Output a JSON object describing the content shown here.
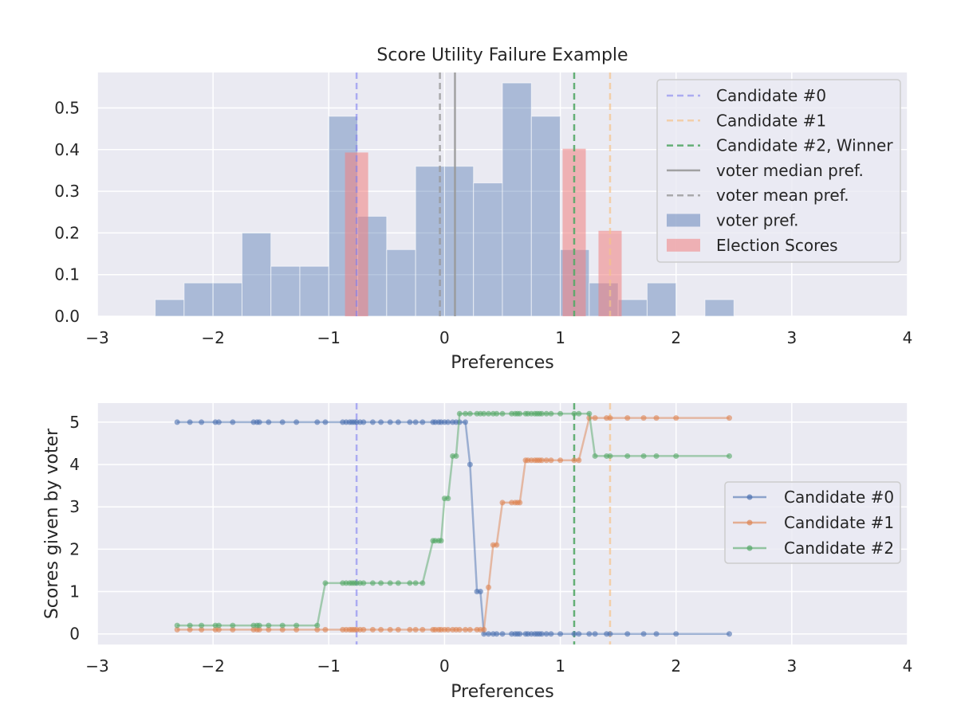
{
  "figure": {
    "background": "#ffffff",
    "plot_background": "#eaeaf2",
    "grid_color": "#ffffff"
  },
  "chart_data": [
    {
      "type": "histogram",
      "title": "Score Utility Failure Example",
      "xlabel": "Preferences",
      "ylabel": "",
      "xlim": [
        -3,
        4
      ],
      "ylim": [
        0,
        0.585
      ],
      "xticks": [
        -3,
        -2,
        -1,
        0,
        1,
        2,
        3,
        4
      ],
      "xtick_labels": [
        "−3",
        "−2",
        "−1",
        "0",
        "1",
        "2",
        "3",
        "4"
      ],
      "yticks": [
        0,
        0.1,
        0.2,
        0.3,
        0.4,
        0.5
      ],
      "ytick_labels": [
        "0.0",
        "0.1",
        "0.2",
        "0.3",
        "0.4",
        "0.5"
      ],
      "grid": true,
      "legend_position": "top-right",
      "voter_pref_hist": {
        "name": "voter pref.",
        "color": "#4c72b0",
        "bins": [
          {
            "x0": -2.5,
            "x1": -2.25,
            "value": 0.04
          },
          {
            "x0": -2.25,
            "x1": -2.0,
            "value": 0.08
          },
          {
            "x0": -2.0,
            "x1": -1.75,
            "value": 0.08
          },
          {
            "x0": -1.75,
            "x1": -1.5,
            "value": 0.2
          },
          {
            "x0": -1.5,
            "x1": -1.25,
            "value": 0.12
          },
          {
            "x0": -1.25,
            "x1": -1.0,
            "value": 0.12
          },
          {
            "x0": -1.0,
            "x1": -0.75,
            "value": 0.48
          },
          {
            "x0": -0.75,
            "x1": -0.5,
            "value": 0.24
          },
          {
            "x0": -0.5,
            "x1": -0.25,
            "value": 0.16
          },
          {
            "x0": -0.25,
            "x1": 0.0,
            "value": 0.36
          },
          {
            "x0": 0.0,
            "x1": 0.25,
            "value": 0.36
          },
          {
            "x0": 0.25,
            "x1": 0.5,
            "value": 0.32
          },
          {
            "x0": 0.5,
            "x1": 0.75,
            "value": 0.56
          },
          {
            "x0": 0.75,
            "x1": 1.0,
            "value": 0.48
          },
          {
            "x0": 1.0,
            "x1": 1.25,
            "value": 0.16
          },
          {
            "x0": 1.25,
            "x1": 1.5,
            "value": 0.08
          },
          {
            "x0": 1.5,
            "x1": 1.75,
            "value": 0.04
          },
          {
            "x0": 1.75,
            "x1": 2.0,
            "value": 0.08
          },
          {
            "x0": 2.25,
            "x1": 2.5,
            "value": 0.04
          }
        ]
      },
      "election_scores": {
        "name": "Election Scores",
        "color": "#f08080",
        "bars": [
          {
            "x0": -0.86,
            "x1": -0.66,
            "value": 0.393
          },
          {
            "x0": 1.02,
            "x1": 1.22,
            "value": 0.402
          },
          {
            "x0": 1.33,
            "x1": 1.53,
            "value": 0.205
          }
        ]
      },
      "vertical_lines": [
        {
          "name": "Candidate #0",
          "x": -0.76,
          "color": "#8080f0",
          "dash": true,
          "opacity": 0.6
        },
        {
          "name": "Candidate #1",
          "x": 1.43,
          "color": "#f5c38a",
          "dash": true,
          "opacity": 0.7
        },
        {
          "name": "Candidate #2, Winner",
          "x": 1.12,
          "color": "#55a868",
          "dash": true,
          "opacity": 0.9
        },
        {
          "name": "voter median pref.",
          "x": 0.09,
          "color": "#999999",
          "dash": false,
          "opacity": 0.9
        },
        {
          "name": "voter mean pref.",
          "x": -0.04,
          "color": "#999999",
          "dash": true,
          "opacity": 0.8
        }
      ],
      "legend": [
        "Candidate #0",
        "Candidate #1",
        "Candidate #2, Winner",
        "voter median pref.",
        "voter mean pref.",
        "voter pref.",
        "Election Scores"
      ]
    },
    {
      "type": "line",
      "title": "",
      "xlabel": "Preferences",
      "ylabel": "Scores given by voter",
      "xlim": [
        -3,
        4
      ],
      "ylim": [
        -0.25,
        5.45
      ],
      "xticks": [
        -3,
        -2,
        -1,
        0,
        1,
        2,
        3,
        4
      ],
      "xtick_labels": [
        "−3",
        "−2",
        "−1",
        "0",
        "1",
        "2",
        "3",
        "4"
      ],
      "yticks": [
        0,
        1,
        2,
        3,
        4,
        5
      ],
      "ytick_labels": [
        "0",
        "1",
        "2",
        "3",
        "4",
        "5"
      ],
      "grid": true,
      "legend_position": "center-right",
      "vertical_lines": [
        {
          "x": -0.76,
          "color": "#8080f0",
          "opacity": 0.6
        },
        {
          "x": 1.12,
          "color": "#55a868",
          "opacity": 0.9
        },
        {
          "x": 1.43,
          "color": "#f5c38a",
          "opacity": 0.7
        }
      ],
      "x": [
        -2.31,
        -2.2,
        -2.1,
        -1.98,
        -1.95,
        -1.83,
        -1.65,
        -1.62,
        -1.6,
        -1.52,
        -1.4,
        -1.28,
        -1.1,
        -1.03,
        -0.88,
        -0.85,
        -0.82,
        -0.8,
        -0.78,
        -0.76,
        -0.73,
        -0.7,
        -0.62,
        -0.55,
        -0.47,
        -0.4,
        -0.3,
        -0.25,
        -0.19,
        -0.1,
        -0.08,
        -0.05,
        -0.03,
        0.0,
        0.03,
        0.07,
        0.1,
        0.13,
        0.18,
        0.22,
        0.28,
        0.31,
        0.34,
        0.38,
        0.42,
        0.45,
        0.5,
        0.58,
        0.61,
        0.63,
        0.65,
        0.7,
        0.72,
        0.75,
        0.78,
        0.8,
        0.82,
        0.84,
        0.88,
        0.92,
        1.0,
        1.12,
        1.16,
        1.25,
        1.3,
        1.4,
        1.43,
        1.58,
        1.72,
        1.83,
        2.0,
        2.46
      ],
      "series": [
        {
          "name": "Candidate #0",
          "color": "#4c72b0",
          "values": [
            5,
            5,
            5,
            5,
            5,
            5,
            5,
            5,
            5,
            5,
            5,
            5,
            5,
            5,
            5,
            5,
            5,
            5,
            5,
            5,
            5,
            5,
            5,
            5,
            5,
            5,
            5,
            5,
            5,
            5,
            5,
            5,
            5,
            5,
            5,
            5,
            5,
            5,
            5,
            4,
            1,
            1,
            0,
            0,
            0,
            0,
            0,
            0,
            0,
            0,
            0,
            0,
            0,
            0,
            0,
            0,
            0,
            0,
            0,
            0,
            0,
            0,
            0,
            0,
            0,
            0,
            0,
            0,
            0,
            0,
            0,
            0
          ]
        },
        {
          "name": "Candidate #1",
          "color": "#dd8452",
          "values": [
            0.1,
            0.1,
            0.1,
            0.1,
            0.1,
            0.1,
            0.1,
            0.1,
            0.1,
            0.1,
            0.1,
            0.1,
            0.1,
            0.1,
            0.1,
            0.1,
            0.1,
            0.1,
            0.1,
            0.1,
            0.1,
            0.1,
            0.1,
            0.1,
            0.1,
            0.1,
            0.1,
            0.1,
            0.1,
            0.1,
            0.1,
            0.1,
            0.1,
            0.1,
            0.1,
            0.1,
            0.1,
            0.1,
            0.1,
            0.1,
            0.1,
            0.1,
            0.1,
            1.1,
            2.1,
            2.1,
            3.1,
            3.1,
            3.1,
            3.1,
            3.1,
            4.1,
            4.1,
            4.1,
            4.1,
            4.1,
            4.1,
            4.1,
            4.1,
            4.1,
            4.1,
            4.1,
            4.1,
            5.1,
            5.1,
            5.1,
            5.1,
            5.1,
            5.1,
            5.1,
            5.1,
            5.1
          ]
        },
        {
          "name": "Candidate #2",
          "color": "#55a868",
          "values": [
            0.2,
            0.2,
            0.2,
            0.2,
            0.2,
            0.2,
            0.2,
            0.2,
            0.2,
            0.2,
            0.2,
            0.2,
            0.2,
            1.2,
            1.2,
            1.2,
            1.2,
            1.2,
            1.2,
            1.2,
            1.2,
            1.2,
            1.2,
            1.2,
            1.2,
            1.2,
            1.2,
            1.2,
            1.2,
            2.2,
            2.2,
            2.2,
            2.2,
            3.2,
            3.2,
            4.2,
            4.2,
            5.2,
            5.2,
            5.2,
            5.2,
            5.2,
            5.2,
            5.2,
            5.2,
            5.2,
            5.2,
            5.2,
            5.2,
            5.2,
            5.2,
            5.2,
            5.2,
            5.2,
            5.2,
            5.2,
            5.2,
            5.2,
            5.2,
            5.2,
            5.2,
            5.2,
            5.2,
            5.2,
            4.2,
            4.2,
            4.2,
            4.2,
            4.2,
            4.2,
            4.2,
            4.2
          ]
        }
      ],
      "legend": [
        "Candidate #0",
        "Candidate #1",
        "Candidate #2"
      ]
    }
  ]
}
